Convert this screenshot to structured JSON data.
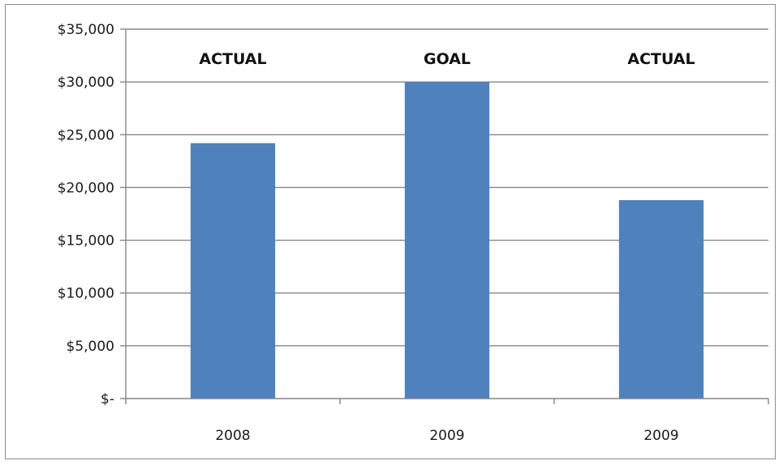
{
  "chart_data": {
    "type": "bar",
    "categories": [
      "2008",
      "2009",
      "2009"
    ],
    "values": [
      24200,
      30000,
      18800
    ],
    "annotations": [
      "ACTUAL",
      "GOAL",
      "ACTUAL"
    ],
    "ylim": [
      0,
      35000
    ],
    "yticks": [
      0,
      5000,
      10000,
      15000,
      20000,
      25000,
      30000,
      35000
    ],
    "ytick_labels": [
      "$-",
      "$5,000",
      "$10,000",
      "$15,000",
      "$20,000",
      "$25,000",
      "$30,000",
      "$35,000"
    ],
    "grid": true,
    "bar_color": "#4f81bd",
    "grid_color": "#868686",
    "axis_color": "#868686"
  }
}
